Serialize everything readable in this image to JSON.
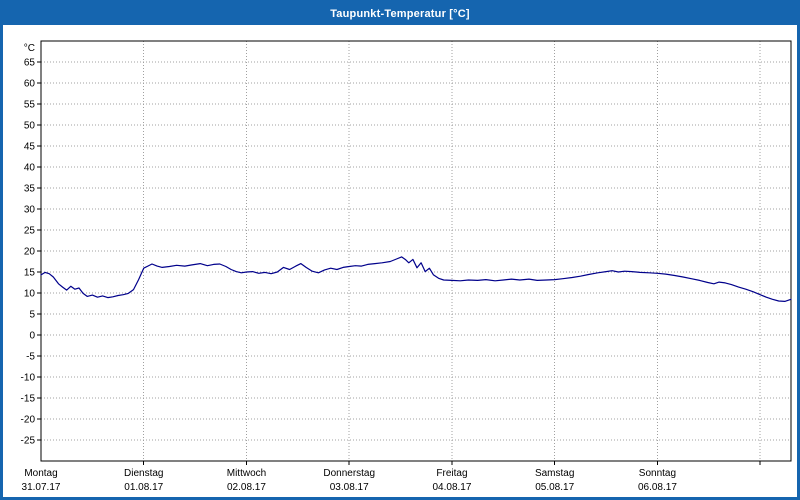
{
  "window": {
    "title": "Taupunkt-Temperatur [°C]"
  },
  "chart_data": {
    "type": "line",
    "title": "Taupunkt-Temperatur [°C]",
    "ylabel_unit": "°C",
    "ylim": [
      -30,
      70
    ],
    "ytick_min": -25,
    "ytick_max": 65,
    "ytick_step": 5,
    "grid": true,
    "x_axis": {
      "unit": "days",
      "xlim": [
        0,
        7.3
      ],
      "day_labels": [
        {
          "day": 0,
          "name": "Montag",
          "date": "31.07.17"
        },
        {
          "day": 1,
          "name": "Dienstag",
          "date": "01.08.17"
        },
        {
          "day": 2,
          "name": "Mittwoch",
          "date": "02.08.17"
        },
        {
          "day": 3,
          "name": "Donnerstag",
          "date": "03.08.17"
        },
        {
          "day": 4,
          "name": "Freitag",
          "date": "04.08.17"
        },
        {
          "day": 5,
          "name": "Samstag",
          "date": "05.08.17"
        },
        {
          "day": 6,
          "name": "Sonntag",
          "date": "06.08.17"
        }
      ]
    },
    "colors": {
      "titlebar": "#1565af",
      "line": "#00008b",
      "grid": "#a0a0a0",
      "frame": "#000000",
      "text": "#000000"
    },
    "series": [
      {
        "name": "Taupunkt-Temperatur",
        "color": "#00008b",
        "points": [
          [
            0.0,
            14.3
          ],
          [
            0.04,
            14.9
          ],
          [
            0.08,
            14.6
          ],
          [
            0.12,
            13.8
          ],
          [
            0.17,
            12.2
          ],
          [
            0.21,
            11.4
          ],
          [
            0.25,
            10.7
          ],
          [
            0.29,
            11.6
          ],
          [
            0.33,
            10.9
          ],
          [
            0.37,
            11.2
          ],
          [
            0.41,
            9.9
          ],
          [
            0.45,
            9.2
          ],
          [
            0.5,
            9.5
          ],
          [
            0.55,
            9.0
          ],
          [
            0.6,
            9.3
          ],
          [
            0.65,
            8.9
          ],
          [
            0.7,
            9.1
          ],
          [
            0.75,
            9.4
          ],
          [
            0.8,
            9.6
          ],
          [
            0.85,
            9.9
          ],
          [
            0.9,
            10.8
          ],
          [
            0.95,
            13.2
          ],
          [
            1.0,
            15.9
          ],
          [
            1.04,
            16.4
          ],
          [
            1.08,
            16.9
          ],
          [
            1.13,
            16.4
          ],
          [
            1.18,
            16.1
          ],
          [
            1.25,
            16.3
          ],
          [
            1.32,
            16.6
          ],
          [
            1.4,
            16.4
          ],
          [
            1.47,
            16.7
          ],
          [
            1.55,
            17.0
          ],
          [
            1.62,
            16.5
          ],
          [
            1.68,
            16.8
          ],
          [
            1.74,
            16.9
          ],
          [
            1.8,
            16.3
          ],
          [
            1.85,
            15.6
          ],
          [
            1.9,
            15.1
          ],
          [
            1.95,
            14.8
          ],
          [
            2.0,
            15.0
          ],
          [
            2.06,
            15.1
          ],
          [
            2.12,
            14.7
          ],
          [
            2.18,
            14.9
          ],
          [
            2.24,
            14.6
          ],
          [
            2.3,
            15.0
          ],
          [
            2.36,
            16.1
          ],
          [
            2.42,
            15.6
          ],
          [
            2.48,
            16.4
          ],
          [
            2.53,
            17.0
          ],
          [
            2.58,
            16.1
          ],
          [
            2.64,
            15.2
          ],
          [
            2.7,
            14.8
          ],
          [
            2.76,
            15.5
          ],
          [
            2.82,
            15.9
          ],
          [
            2.88,
            15.6
          ],
          [
            2.94,
            16.1
          ],
          [
            3.0,
            16.3
          ],
          [
            3.06,
            16.5
          ],
          [
            3.12,
            16.4
          ],
          [
            3.18,
            16.8
          ],
          [
            3.25,
            17.0
          ],
          [
            3.32,
            17.2
          ],
          [
            3.4,
            17.5
          ],
          [
            3.46,
            18.1
          ],
          [
            3.51,
            18.6
          ],
          [
            3.55,
            17.9
          ],
          [
            3.58,
            17.2
          ],
          [
            3.62,
            18.0
          ],
          [
            3.66,
            16.0
          ],
          [
            3.7,
            17.2
          ],
          [
            3.74,
            15.1
          ],
          [
            3.78,
            15.9
          ],
          [
            3.82,
            14.3
          ],
          [
            3.87,
            13.5
          ],
          [
            3.92,
            13.1
          ],
          [
            4.0,
            13.0
          ],
          [
            4.08,
            12.9
          ],
          [
            4.16,
            13.1
          ],
          [
            4.25,
            13.0
          ],
          [
            4.33,
            13.2
          ],
          [
            4.42,
            12.9
          ],
          [
            4.5,
            13.1
          ],
          [
            4.58,
            13.3
          ],
          [
            4.66,
            13.1
          ],
          [
            4.75,
            13.3
          ],
          [
            4.83,
            13.0
          ],
          [
            4.92,
            13.1
          ],
          [
            5.0,
            13.2
          ],
          [
            5.08,
            13.4
          ],
          [
            5.17,
            13.7
          ],
          [
            5.25,
            14.0
          ],
          [
            5.33,
            14.4
          ],
          [
            5.42,
            14.8
          ],
          [
            5.5,
            15.1
          ],
          [
            5.56,
            15.3
          ],
          [
            5.62,
            15.0
          ],
          [
            5.68,
            15.2
          ],
          [
            5.75,
            15.1
          ],
          [
            5.83,
            14.9
          ],
          [
            5.92,
            14.8
          ],
          [
            6.0,
            14.7
          ],
          [
            6.08,
            14.5
          ],
          [
            6.16,
            14.2
          ],
          [
            6.25,
            13.8
          ],
          [
            6.33,
            13.4
          ],
          [
            6.41,
            13.0
          ],
          [
            6.49,
            12.5
          ],
          [
            6.55,
            12.2
          ],
          [
            6.6,
            12.6
          ],
          [
            6.66,
            12.4
          ],
          [
            6.72,
            12.0
          ],
          [
            6.79,
            11.4
          ],
          [
            6.86,
            10.9
          ],
          [
            6.93,
            10.3
          ],
          [
            7.0,
            9.6
          ],
          [
            7.06,
            9.0
          ],
          [
            7.12,
            8.5
          ],
          [
            7.18,
            8.1
          ],
          [
            7.24,
            8.0
          ],
          [
            7.3,
            8.5
          ]
        ]
      }
    ]
  }
}
